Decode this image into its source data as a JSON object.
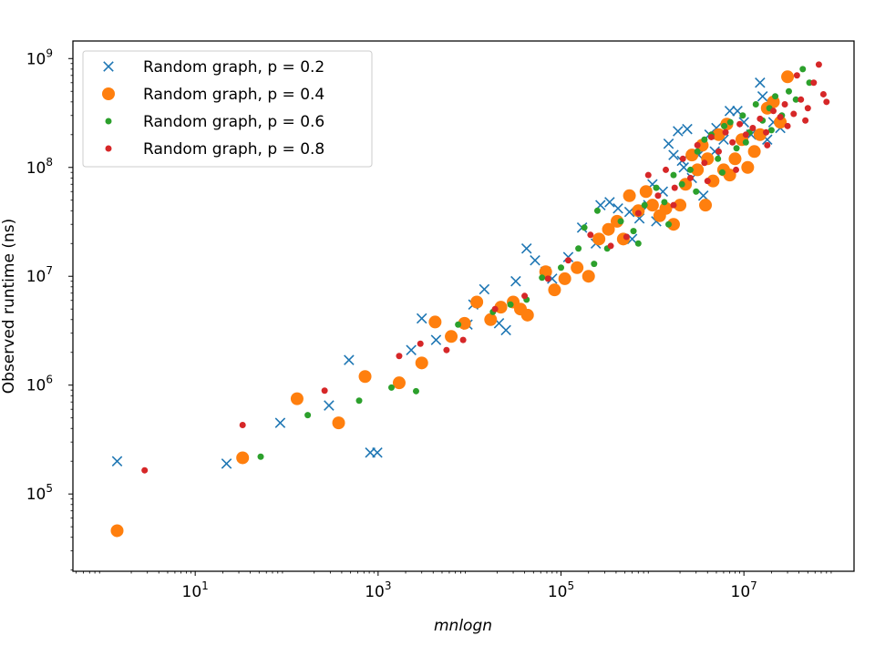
{
  "chart_data": {
    "type": "scatter",
    "title": "",
    "xlabel": "mnlogn",
    "ylabel": "Observed runtime (ns)",
    "xscale": "log",
    "yscale": "log",
    "xlim": [
      0.46,
      160000000.0
    ],
    "ylim": [
      19500,
      1450000000.0
    ],
    "xticks": [
      {
        "value": 10,
        "base": "10",
        "exp": "1"
      },
      {
        "value": 1000,
        "base": "10",
        "exp": "3"
      },
      {
        "value": 100000,
        "base": "10",
        "exp": "5"
      },
      {
        "value": 10000000,
        "base": "10",
        "exp": "7"
      }
    ],
    "yticks": [
      {
        "value": 100000,
        "base": "10",
        "exp": "5"
      },
      {
        "value": 1000000,
        "base": "10",
        "exp": "6"
      },
      {
        "value": 10000000,
        "base": "10",
        "exp": "7"
      },
      {
        "value": 100000000,
        "base": "10",
        "exp": "8"
      },
      {
        "value": 1000000000,
        "base": "10",
        "exp": "9"
      }
    ],
    "grid": false,
    "legend_position": "top-left",
    "series": [
      {
        "name": "Random graph, p = 0.2",
        "marker": "x",
        "color": "#1f77b4",
        "points": [
          [
            1.4,
            200000
          ],
          [
            22,
            190000
          ],
          [
            85,
            450000
          ],
          [
            290,
            650000
          ],
          [
            480,
            1700000
          ],
          [
            820,
            240000
          ],
          [
            980,
            240000
          ],
          [
            2300,
            2100000
          ],
          [
            3000,
            4100000
          ],
          [
            4300,
            2600000
          ],
          [
            9500,
            3600000
          ],
          [
            11000,
            5500000
          ],
          [
            14500,
            7600000
          ],
          [
            21000,
            3700000
          ],
          [
            25000,
            3200000
          ],
          [
            32000,
            9000000
          ],
          [
            42000,
            18000000
          ],
          [
            52000,
            14000000
          ],
          [
            68000,
            11000000
          ],
          [
            80000,
            9500000
          ],
          [
            120000,
            15000000
          ],
          [
            170000,
            28000000
          ],
          [
            240000,
            20000000
          ],
          [
            270000,
            45000000
          ],
          [
            340000,
            48000000
          ],
          [
            420000,
            42000000
          ],
          [
            560000,
            39000000
          ],
          [
            720000,
            34000000
          ],
          [
            900000,
            45000000
          ],
          [
            1100000,
            32000000
          ],
          [
            1300000,
            60000000
          ],
          [
            1500000,
            165000000
          ],
          [
            1700000,
            130000000
          ],
          [
            1900000,
            215000000
          ],
          [
            2100000,
            115000000
          ],
          [
            2400000,
            225000000
          ],
          [
            2700000,
            80000000
          ],
          [
            3200000,
            130000000
          ],
          [
            3600000,
            55000000
          ],
          [
            4200000,
            200000000
          ],
          [
            5000000,
            230000000
          ],
          [
            6000000,
            180000000
          ],
          [
            7000000,
            330000000
          ],
          [
            8500000,
            330000000
          ],
          [
            10000000,
            260000000
          ],
          [
            12000000,
            200000000
          ],
          [
            15000000,
            600000000
          ],
          [
            16000000,
            450000000
          ],
          [
            18000000,
            180000000
          ],
          [
            21000000,
            260000000
          ],
          [
            25000000,
            230000000
          ],
          [
            600000,
            22000000
          ],
          [
            1000000,
            70000000
          ],
          [
            2200000,
            100000000
          ],
          [
            4800000,
            140000000
          ]
        ]
      },
      {
        "name": "Random graph, p = 0.4",
        "marker": "o",
        "size": 7,
        "color": "#ff7f0e",
        "points": [
          [
            1.4,
            46000
          ],
          [
            33,
            215000
          ],
          [
            130,
            750000
          ],
          [
            370,
            450000
          ],
          [
            720,
            1200000
          ],
          [
            1700,
            1050000
          ],
          [
            3000,
            1600000
          ],
          [
            4200,
            3800000
          ],
          [
            6300,
            2800000
          ],
          [
            8800,
            3700000
          ],
          [
            12000,
            5800000
          ],
          [
            17000,
            4000000
          ],
          [
            22000,
            5200000
          ],
          [
            30000,
            5800000
          ],
          [
            36000,
            5000000
          ],
          [
            43000,
            4400000
          ],
          [
            68000,
            11000000
          ],
          [
            85000,
            7500000
          ],
          [
            110000,
            9500000
          ],
          [
            150000,
            12000000
          ],
          [
            200000,
            10000000
          ],
          [
            260000,
            22000000
          ],
          [
            330000,
            27000000
          ],
          [
            410000,
            32000000
          ],
          [
            480000,
            22000000
          ],
          [
            560000,
            55000000
          ],
          [
            700000,
            40000000
          ],
          [
            850000,
            60000000
          ],
          [
            1000000,
            45000000
          ],
          [
            1200000,
            36000000
          ],
          [
            1400000,
            42000000
          ],
          [
            1700000,
            30000000
          ],
          [
            2000000,
            45000000
          ],
          [
            2300000,
            70000000
          ],
          [
            2700000,
            130000000
          ],
          [
            3100000,
            95000000
          ],
          [
            3500000,
            160000000
          ],
          [
            4000000,
            120000000
          ],
          [
            4600000,
            75000000
          ],
          [
            5300000,
            200000000
          ],
          [
            6000000,
            95000000
          ],
          [
            7000000,
            85000000
          ],
          [
            8000000,
            120000000
          ],
          [
            9500000,
            180000000
          ],
          [
            11000000,
            100000000
          ],
          [
            13000000,
            140000000
          ],
          [
            15000000,
            200000000
          ],
          [
            18000000,
            350000000
          ],
          [
            21000000,
            400000000
          ],
          [
            25000000,
            260000000
          ],
          [
            30000000,
            680000000
          ],
          [
            3800000,
            45000000
          ],
          [
            6500000,
            250000000
          ]
        ]
      },
      {
        "name": "Random graph, p = 0.6",
        "marker": "o",
        "size": 3.5,
        "color": "#2ca02c",
        "points": [
          [
            52,
            220000
          ],
          [
            170,
            530000
          ],
          [
            620,
            720000
          ],
          [
            1400,
            950000
          ],
          [
            2600,
            880000
          ],
          [
            7500,
            3600000
          ],
          [
            18000,
            4700000
          ],
          [
            28000,
            5500000
          ],
          [
            42000,
            6100000
          ],
          [
            62000,
            9700000
          ],
          [
            100000,
            12000000
          ],
          [
            155000,
            18000000
          ],
          [
            230000,
            13000000
          ],
          [
            320000,
            18000000
          ],
          [
            450000,
            32000000
          ],
          [
            620000,
            26000000
          ],
          [
            820000,
            45000000
          ],
          [
            1100000,
            65000000
          ],
          [
            1350000,
            48000000
          ],
          [
            1700000,
            85000000
          ],
          [
            2100000,
            70000000
          ],
          [
            2600000,
            95000000
          ],
          [
            3100000,
            140000000
          ],
          [
            3700000,
            180000000
          ],
          [
            4400000,
            200000000
          ],
          [
            5200000,
            120000000
          ],
          [
            6100000,
            240000000
          ],
          [
            7100000,
            260000000
          ],
          [
            8300000,
            150000000
          ],
          [
            9700000,
            300000000
          ],
          [
            11500000,
            210000000
          ],
          [
            13500000,
            380000000
          ],
          [
            16000000,
            270000000
          ],
          [
            19000000,
            350000000
          ],
          [
            22000000,
            450000000
          ],
          [
            26000000,
            300000000
          ],
          [
            31000000,
            500000000
          ],
          [
            37000000,
            420000000
          ],
          [
            44000000,
            800000000
          ],
          [
            52000000,
            600000000
          ],
          [
            3000000,
            60000000
          ],
          [
            5800000,
            90000000
          ],
          [
            10500000,
            170000000
          ],
          [
            20000000,
            220000000
          ],
          [
            1500000,
            30000000
          ],
          [
            700000,
            20000000
          ],
          [
            250000,
            40000000
          ],
          [
            180000,
            28000000
          ]
        ]
      },
      {
        "name": "Random graph, p = 0.8",
        "marker": "o",
        "size": 3.5,
        "color": "#d62728",
        "points": [
          [
            2.8,
            165000
          ],
          [
            33,
            430000
          ],
          [
            260,
            890000
          ],
          [
            1700,
            1850000
          ],
          [
            2900,
            2400000
          ],
          [
            5600,
            2100000
          ],
          [
            8500,
            2600000
          ],
          [
            19000,
            5000000
          ],
          [
            40000,
            6600000
          ],
          [
            72000,
            9500000
          ],
          [
            120000,
            14000000
          ],
          [
            210000,
            24000000
          ],
          [
            350000,
            19000000
          ],
          [
            520000,
            23000000
          ],
          [
            700000,
            38000000
          ],
          [
            900000,
            85000000
          ],
          [
            1150000,
            55000000
          ],
          [
            1400000,
            95000000
          ],
          [
            1750000,
            65000000
          ],
          [
            2150000,
            120000000
          ],
          [
            2600000,
            80000000
          ],
          [
            3100000,
            160000000
          ],
          [
            3700000,
            110000000
          ],
          [
            4400000,
            190000000
          ],
          [
            5300000,
            140000000
          ],
          [
            6300000,
            210000000
          ],
          [
            7500000,
            170000000
          ],
          [
            9000000,
            250000000
          ],
          [
            10500000,
            200000000
          ],
          [
            12500000,
            230000000
          ],
          [
            15000000,
            280000000
          ],
          [
            17500000,
            210000000
          ],
          [
            21000000,
            330000000
          ],
          [
            25000000,
            290000000
          ],
          [
            30000000,
            240000000
          ],
          [
            35000000,
            310000000
          ],
          [
            42000000,
            420000000
          ],
          [
            50000000,
            350000000
          ],
          [
            58000000,
            600000000
          ],
          [
            66000000,
            880000000
          ],
          [
            74000000,
            470000000
          ],
          [
            80000000,
            400000000
          ],
          [
            47000000,
            270000000
          ],
          [
            38000000,
            700000000
          ],
          [
            28000000,
            380000000
          ],
          [
            18000000,
            160000000
          ],
          [
            8200000,
            95000000
          ],
          [
            4000000,
            75000000
          ],
          [
            1700000,
            45000000
          ]
        ]
      }
    ]
  }
}
